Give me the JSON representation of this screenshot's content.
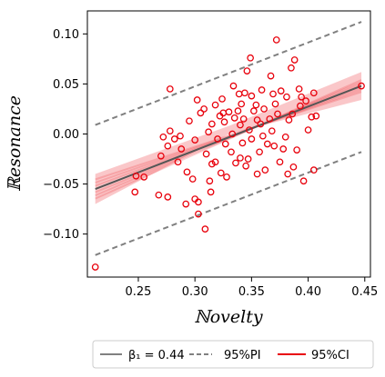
{
  "chart_data": {
    "type": "scatter",
    "xlabel": "ℕovelty",
    "ylabel": "ℝesonance",
    "xlim": [
      0.205,
      0.455
    ],
    "ylim": [
      -0.143,
      0.123
    ],
    "xticks": [
      0.25,
      0.3,
      0.35,
      0.4,
      0.45
    ],
    "yticks": [
      -0.1,
      -0.05,
      0.0,
      0.05,
      0.1
    ],
    "xtick_labels": [
      "0.25",
      "0.30",
      "0.35",
      "0.40",
      "0.45"
    ],
    "ytick_labels": [
      "−0.10",
      "−0.05",
      "0.00",
      "0.05",
      "0.10"
    ],
    "grid": false,
    "legend_position": "bottom",
    "colors": {
      "points": "#e8000b",
      "fit_line": "#555555",
      "pi": "#808080",
      "ci": "#e8000b"
    },
    "fit": {
      "beta1": 0.44,
      "x": [
        0.212,
        0.447
      ],
      "y": [
        -0.055,
        0.048
      ]
    },
    "pi_upper": {
      "x": [
        0.212,
        0.447
      ],
      "y": [
        0.009,
        0.112
      ]
    },
    "pi_lower": {
      "x": [
        0.212,
        0.447
      ],
      "y": [
        -0.121,
        -0.018
      ]
    },
    "ci_band": {
      "x": [
        0.212,
        0.33,
        0.447
      ],
      "upper": [
        -0.04,
        0.008,
        0.062
      ],
      "lower": [
        -0.07,
        0.0,
        0.034
      ]
    },
    "legend": [
      {
        "label": "β₁ = 0.44",
        "kind": "fit"
      },
      {
        "label": "95%PI",
        "kind": "pi"
      },
      {
        "label": "95%CI",
        "kind": "ci"
      }
    ],
    "points": [
      [
        0.212,
        -0.133
      ],
      [
        0.247,
        -0.058
      ],
      [
        0.248,
        -0.042
      ],
      [
        0.255,
        -0.043
      ],
      [
        0.268,
        -0.061
      ],
      [
        0.27,
        -0.022
      ],
      [
        0.272,
        -0.003
      ],
      [
        0.276,
        -0.012
      ],
      [
        0.278,
        0.045
      ],
      [
        0.276,
        -0.063
      ],
      [
        0.278,
        0.003
      ],
      [
        0.282,
        -0.005
      ],
      [
        0.285,
        -0.028
      ],
      [
        0.287,
        -0.002
      ],
      [
        0.288,
        -0.015
      ],
      [
        0.292,
        -0.07
      ],
      [
        0.293,
        -0.038
      ],
      [
        0.295,
        0.013
      ],
      [
        0.298,
        -0.045
      ],
      [
        0.3,
        -0.006
      ],
      [
        0.3,
        -0.065
      ],
      [
        0.303,
        -0.068
      ],
      [
        0.303,
        -0.08
      ],
      [
        0.302,
        0.034
      ],
      [
        0.305,
        0.021
      ],
      [
        0.308,
        0.025
      ],
      [
        0.309,
        -0.095
      ],
      [
        0.31,
        -0.02
      ],
      [
        0.312,
        0.002
      ],
      [
        0.313,
        -0.047
      ],
      [
        0.314,
        -0.058
      ],
      [
        0.315,
        0.01
      ],
      [
        0.315,
        -0.03
      ],
      [
        0.318,
        -0.028
      ],
      [
        0.318,
        0.029
      ],
      [
        0.32,
        -0.005
      ],
      [
        0.322,
        0.018
      ],
      [
        0.323,
        -0.039
      ],
      [
        0.324,
        0.035
      ],
      [
        0.325,
        0.021
      ],
      [
        0.326,
        0.012
      ],
      [
        0.327,
        -0.01
      ],
      [
        0.328,
        -0.043
      ],
      [
        0.33,
        0.022
      ],
      [
        0.332,
        -0.018
      ],
      [
        0.333,
        0.0
      ],
      [
        0.334,
        0.048
      ],
      [
        0.335,
        0.016
      ],
      [
        0.336,
        -0.029
      ],
      [
        0.338,
        0.023
      ],
      [
        0.339,
        0.04
      ],
      [
        0.34,
        0.009
      ],
      [
        0.34,
        -0.024
      ],
      [
        0.341,
        0.03
      ],
      [
        0.342,
        -0.009
      ],
      [
        0.343,
        0.015
      ],
      [
        0.344,
        0.041
      ],
      [
        0.345,
        -0.032
      ],
      [
        0.346,
        0.063
      ],
      [
        0.347,
        -0.025
      ],
      [
        0.348,
        0.004
      ],
      [
        0.349,
        0.076
      ],
      [
        0.35,
        -0.005
      ],
      [
        0.35,
        0.038
      ],
      [
        0.352,
        0.023
      ],
      [
        0.354,
        0.029
      ],
      [
        0.355,
        0.014
      ],
      [
        0.355,
        -0.04
      ],
      [
        0.357,
        -0.018
      ],
      [
        0.358,
        0.01
      ],
      [
        0.359,
        0.044
      ],
      [
        0.36,
        -0.002
      ],
      [
        0.361,
        0.025
      ],
      [
        0.362,
        -0.036
      ],
      [
        0.364,
        -0.01
      ],
      [
        0.366,
        0.015
      ],
      [
        0.367,
        0.058
      ],
      [
        0.368,
        0.003
      ],
      [
        0.369,
        0.04
      ],
      [
        0.37,
        -0.012
      ],
      [
        0.371,
        0.03
      ],
      [
        0.372,
        0.094
      ],
      [
        0.373,
        0.02
      ],
      [
        0.375,
        -0.028
      ],
      [
        0.376,
        0.043
      ],
      [
        0.378,
        -0.015
      ],
      [
        0.38,
        -0.003
      ],
      [
        0.381,
        0.037
      ],
      [
        0.382,
        -0.04
      ],
      [
        0.383,
        0.014
      ],
      [
        0.385,
        0.066
      ],
      [
        0.386,
        0.02
      ],
      [
        0.387,
        -0.033
      ],
      [
        0.388,
        0.074
      ],
      [
        0.39,
        -0.016
      ],
      [
        0.392,
        0.045
      ],
      [
        0.393,
        0.028
      ],
      [
        0.394,
        0.037
      ],
      [
        0.396,
        -0.047
      ],
      [
        0.398,
        0.033
      ],
      [
        0.4,
        0.004
      ],
      [
        0.403,
        0.017
      ],
      [
        0.405,
        0.041
      ],
      [
        0.407,
        0.018
      ],
      [
        0.405,
        -0.036
      ],
      [
        0.447,
        0.048
      ]
    ]
  }
}
